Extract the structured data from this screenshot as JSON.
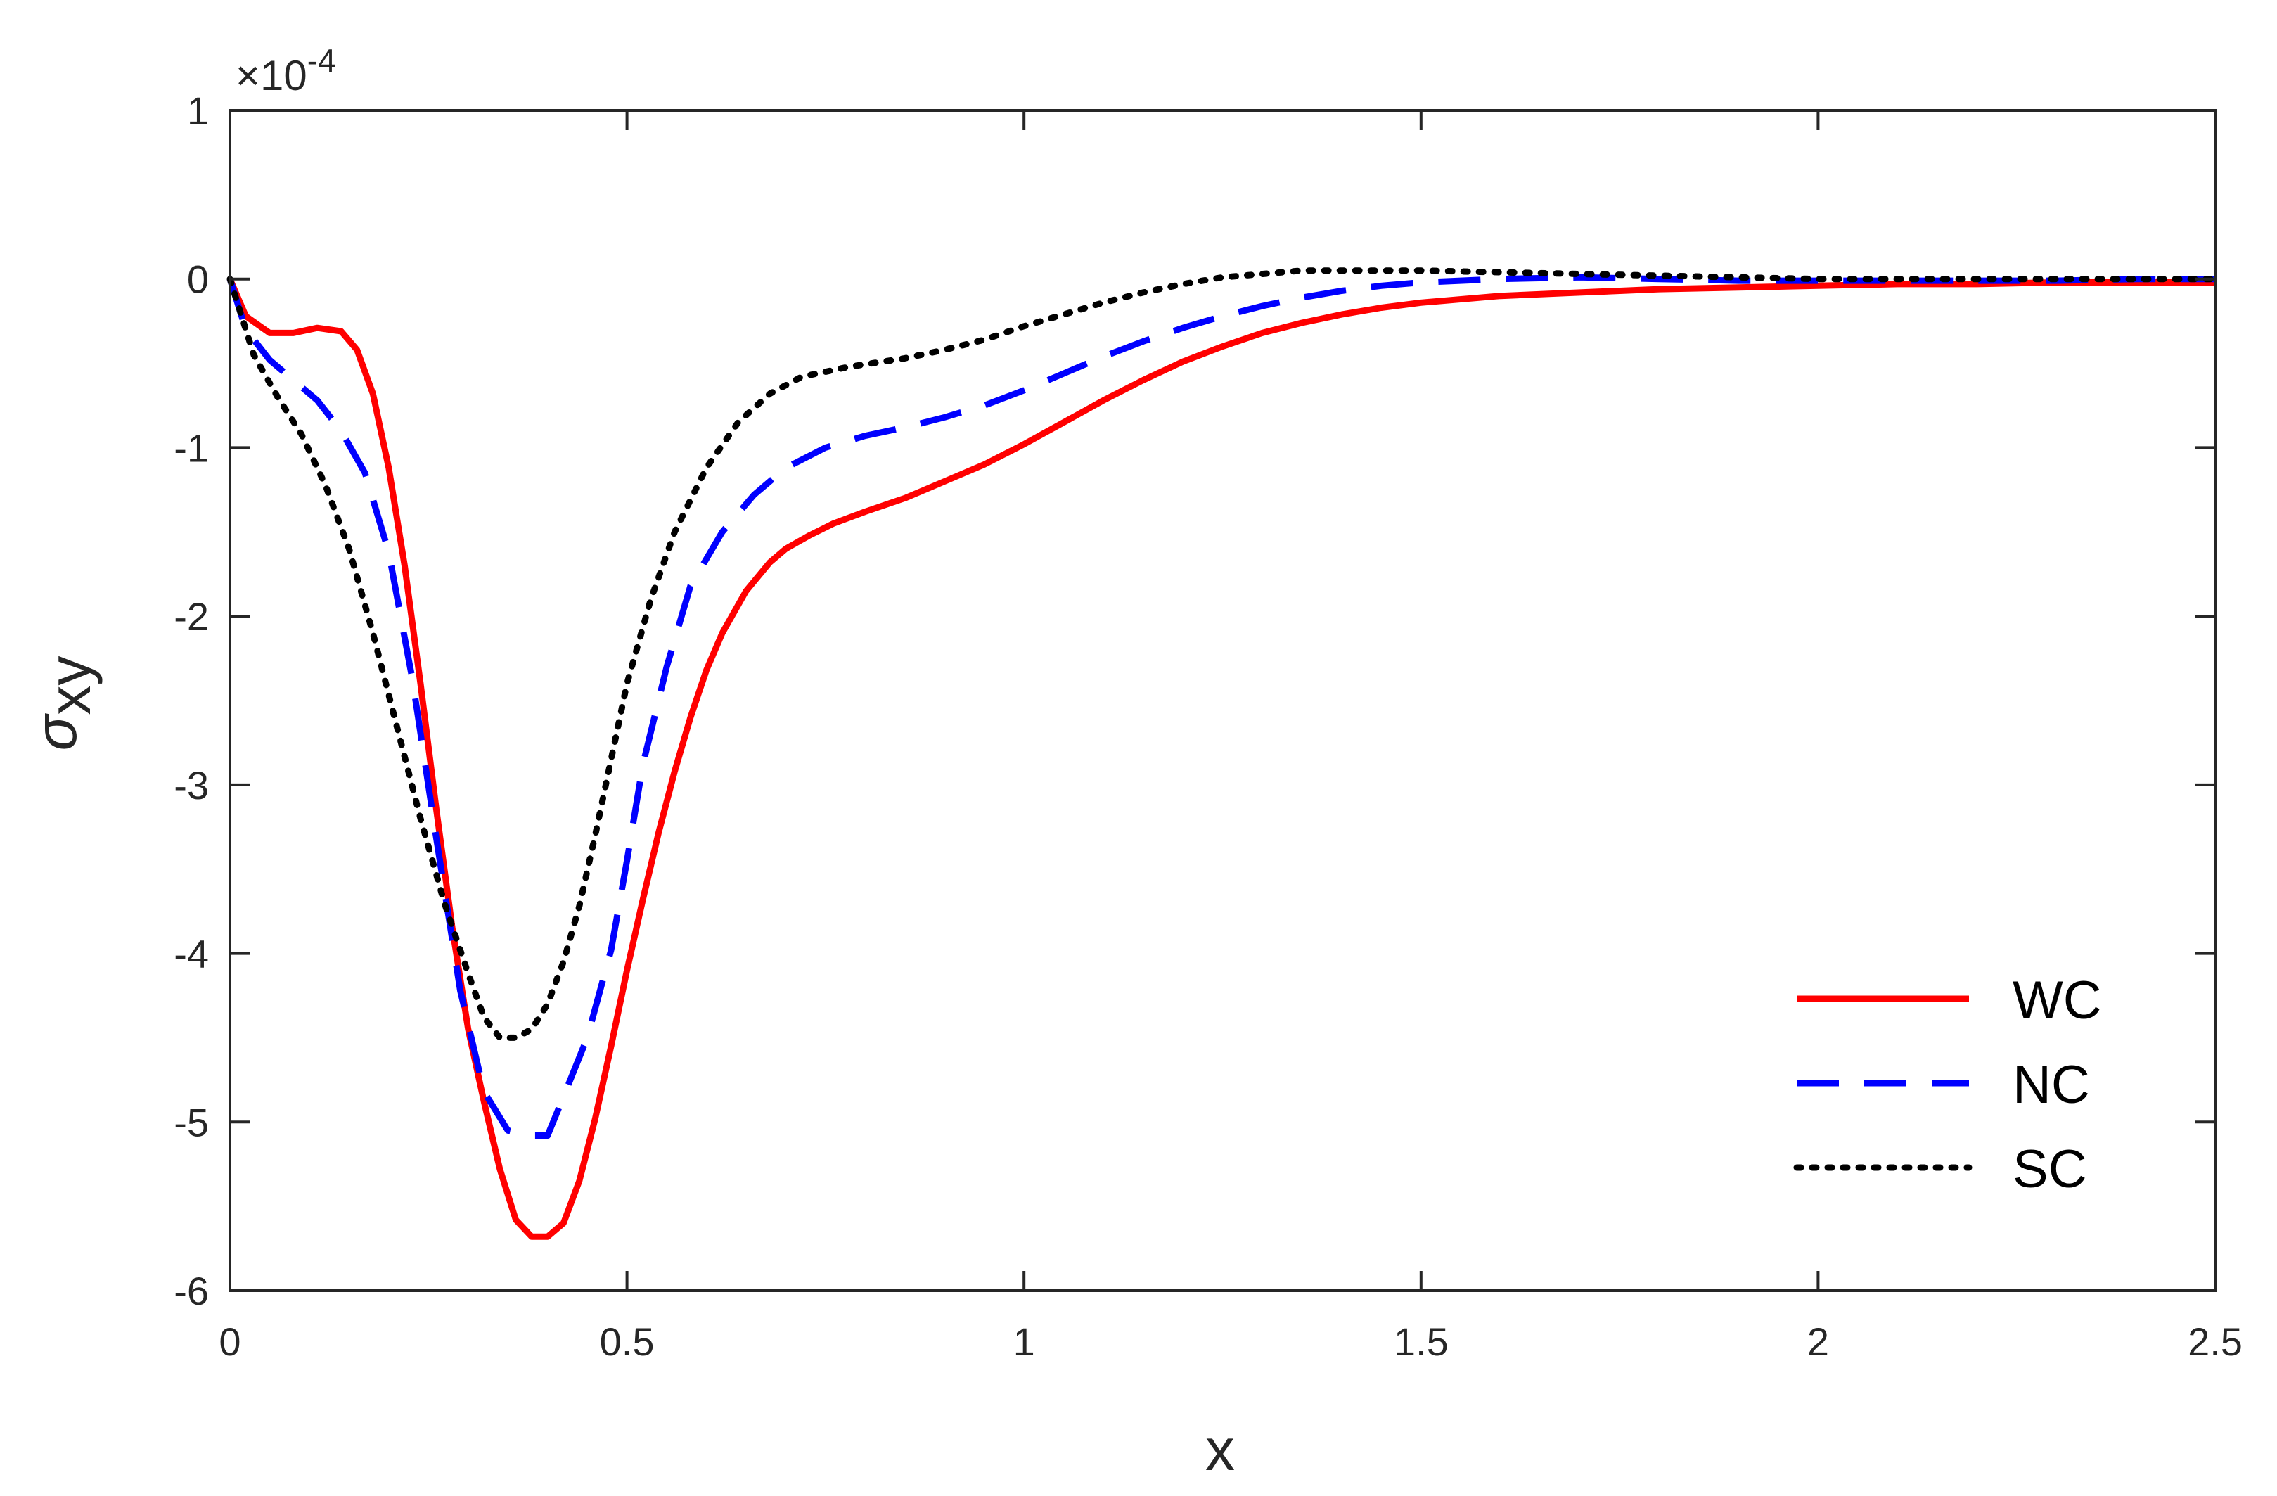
{
  "chart_data": {
    "type": "line",
    "xlabel": "x",
    "ylabel_symbol": "σ",
    "ylabel_subscript": "xy",
    "exponent_prefix": "×10",
    "exponent_power": "-4",
    "xlim": [
      0,
      2.5
    ],
    "ylim": [
      -6,
      1
    ],
    "y_scale_factor": 0.0001,
    "xticks": [
      0,
      0.5,
      1,
      1.5,
      2,
      2.5
    ],
    "xtick_labels": [
      "0",
      "0.5",
      "1",
      "1.5",
      "2",
      "2.5"
    ],
    "yticks": [
      1,
      0,
      -1,
      -2,
      -3,
      -4,
      -5,
      -6
    ],
    "ytick_labels": [
      "1",
      "0",
      "-1",
      "-2",
      "-3",
      "-4",
      "-5",
      "-6"
    ],
    "grid": false,
    "legend_position": "bottom-right",
    "series": [
      {
        "name": "WC",
        "color": "#ff0000",
        "style": "solid",
        "x": [
          0,
          0.02,
          0.05,
          0.08,
          0.11,
          0.14,
          0.16,
          0.18,
          0.2,
          0.22,
          0.24,
          0.26,
          0.28,
          0.3,
          0.32,
          0.34,
          0.36,
          0.38,
          0.4,
          0.42,
          0.44,
          0.46,
          0.48,
          0.5,
          0.52,
          0.54,
          0.56,
          0.58,
          0.6,
          0.62,
          0.65,
          0.68,
          0.7,
          0.73,
          0.76,
          0.8,
          0.85,
          0.9,
          0.95,
          1.0,
          1.05,
          1.1,
          1.15,
          1.2,
          1.25,
          1.3,
          1.35,
          1.4,
          1.45,
          1.5,
          1.6,
          1.7,
          1.8,
          1.9,
          2.0,
          2.1,
          2.2,
          2.3,
          2.4,
          2.5
        ],
        "y": [
          0,
          -0.22,
          -0.32,
          -0.32,
          -0.29,
          -0.31,
          -0.42,
          -0.68,
          -1.12,
          -1.7,
          -2.4,
          -3.15,
          -3.85,
          -4.45,
          -4.88,
          -5.28,
          -5.58,
          -5.68,
          -5.68,
          -5.6,
          -5.35,
          -4.98,
          -4.55,
          -4.1,
          -3.68,
          -3.28,
          -2.92,
          -2.6,
          -2.32,
          -2.1,
          -1.85,
          -1.68,
          -1.6,
          -1.52,
          -1.45,
          -1.38,
          -1.3,
          -1.2,
          -1.1,
          -0.98,
          -0.85,
          -0.72,
          -0.6,
          -0.49,
          -0.4,
          -0.32,
          -0.26,
          -0.21,
          -0.17,
          -0.14,
          -0.1,
          -0.08,
          -0.06,
          -0.05,
          -0.04,
          -0.03,
          -0.03,
          -0.02,
          -0.02,
          -0.02
        ]
      },
      {
        "name": "NC",
        "color": "#0000ff",
        "style": "dashed",
        "x": [
          0,
          0.02,
          0.05,
          0.08,
          0.11,
          0.14,
          0.17,
          0.2,
          0.23,
          0.26,
          0.29,
          0.32,
          0.35,
          0.38,
          0.4,
          0.42,
          0.45,
          0.48,
          0.5,
          0.52,
          0.55,
          0.58,
          0.62,
          0.66,
          0.7,
          0.75,
          0.8,
          0.85,
          0.9,
          0.95,
          1.0,
          1.05,
          1.1,
          1.15,
          1.2,
          1.25,
          1.3,
          1.35,
          1.4,
          1.45,
          1.5,
          1.6,
          1.7,
          1.8,
          1.9,
          2.0,
          2.1,
          2.2,
          2.3,
          2.4,
          2.5
        ],
        "y": [
          0,
          -0.3,
          -0.48,
          -0.6,
          -0.72,
          -0.9,
          -1.15,
          -1.62,
          -2.38,
          -3.32,
          -4.22,
          -4.82,
          -5.05,
          -5.08,
          -5.08,
          -4.85,
          -4.5,
          -3.98,
          -3.45,
          -2.88,
          -2.3,
          -1.82,
          -1.5,
          -1.28,
          -1.12,
          -1.0,
          -0.93,
          -0.88,
          -0.82,
          -0.75,
          -0.66,
          -0.56,
          -0.46,
          -0.37,
          -0.29,
          -0.22,
          -0.16,
          -0.11,
          -0.07,
          -0.04,
          -0.02,
          0,
          0.01,
          0.0,
          -0.01,
          -0.01,
          -0.01,
          -0.01,
          -0.01,
          0,
          0
        ]
      },
      {
        "name": "SC",
        "color": "#000000",
        "style": "dotted",
        "x": [
          0,
          0.03,
          0.06,
          0.09,
          0.12,
          0.15,
          0.18,
          0.21,
          0.24,
          0.27,
          0.3,
          0.32,
          0.34,
          0.36,
          0.38,
          0.4,
          0.42,
          0.44,
          0.46,
          0.48,
          0.5,
          0.53,
          0.56,
          0.6,
          0.64,
          0.68,
          0.72,
          0.78,
          0.85,
          0.9,
          0.95,
          1.0,
          1.05,
          1.1,
          1.15,
          1.2,
          1.25,
          1.3,
          1.35,
          1.4,
          1.5,
          1.6,
          1.7,
          1.8,
          1.9,
          2.0,
          2.1,
          2.2,
          2.3,
          2.4,
          2.5
        ],
        "y": [
          0,
          -0.45,
          -0.7,
          -0.92,
          -1.22,
          -1.6,
          -2.1,
          -2.65,
          -3.2,
          -3.7,
          -4.12,
          -4.38,
          -4.5,
          -4.5,
          -4.45,
          -4.3,
          -4.05,
          -3.72,
          -3.3,
          -2.85,
          -2.4,
          -1.9,
          -1.5,
          -1.12,
          -0.85,
          -0.68,
          -0.58,
          -0.52,
          -0.47,
          -0.42,
          -0.36,
          -0.28,
          -0.21,
          -0.14,
          -0.08,
          -0.03,
          0.01,
          0.03,
          0.05,
          0.05,
          0.05,
          0.04,
          0.03,
          0.02,
          0.01,
          0,
          0,
          0,
          0,
          0,
          0
        ]
      }
    ]
  }
}
